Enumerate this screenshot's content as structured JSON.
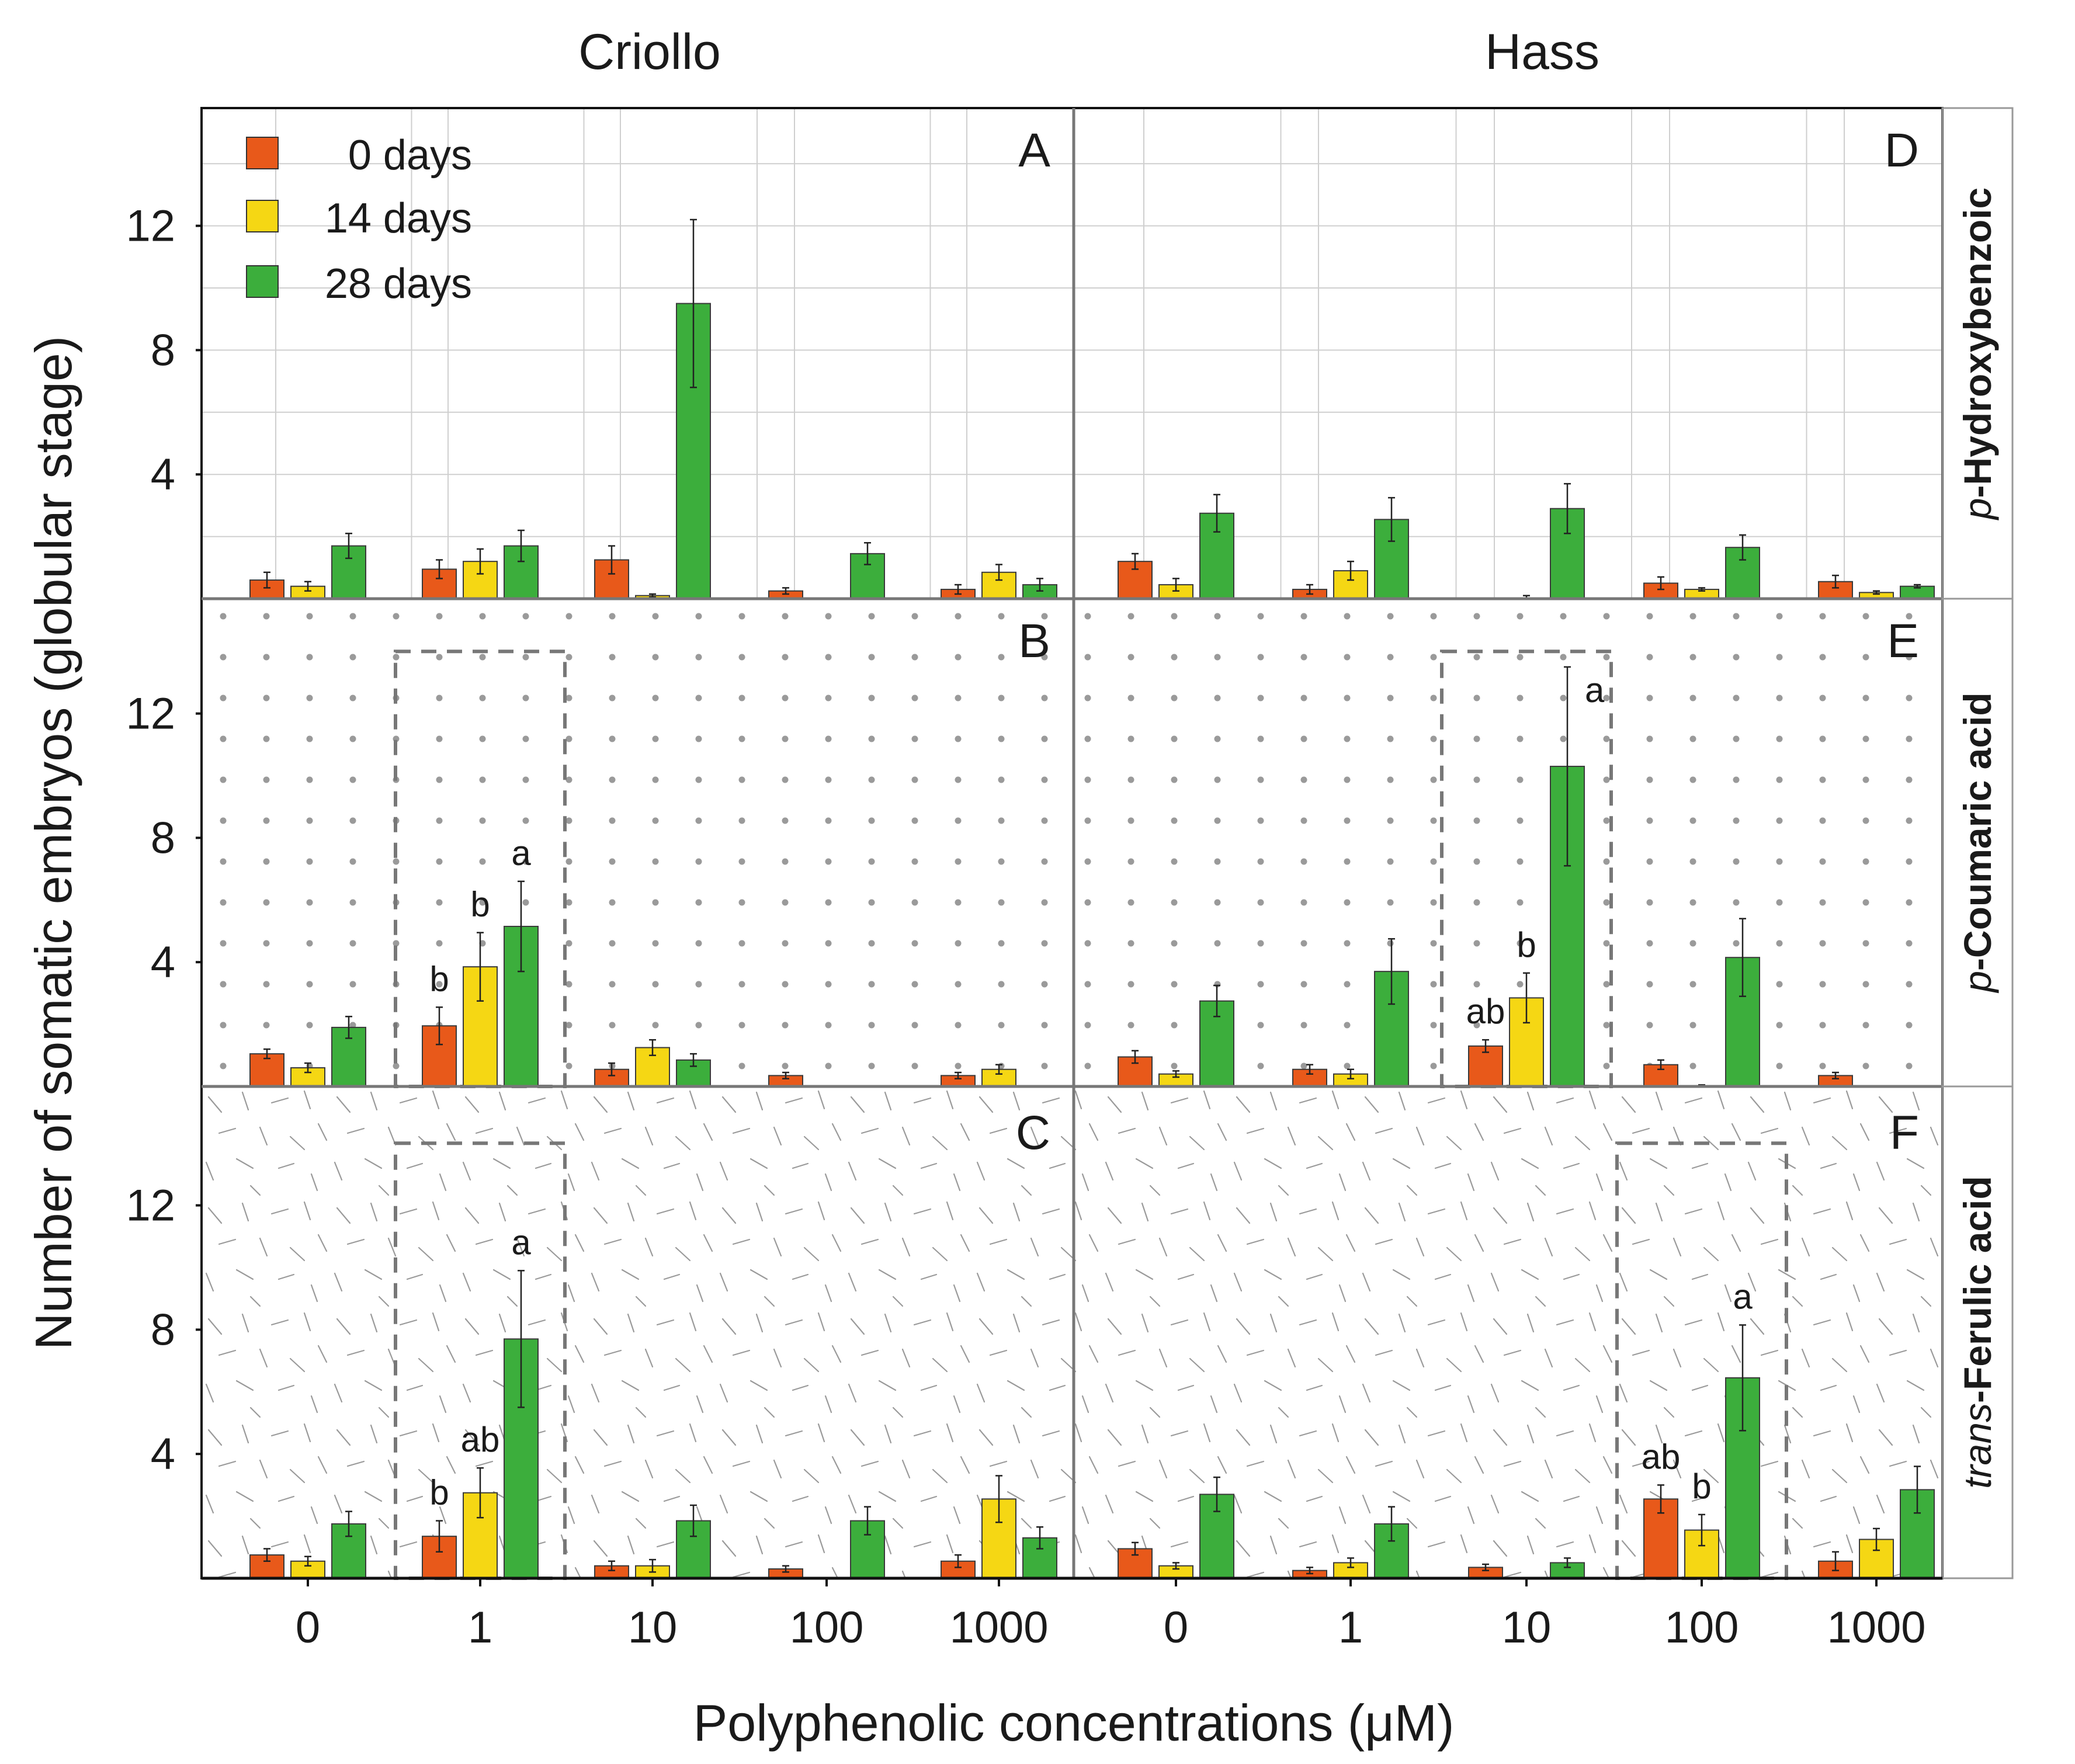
{
  "figure": {
    "x_title": "Polyphenolic concentrations (μM)",
    "y_title": "Number of somatic embryos (globular stage)"
  },
  "chart_data": {
    "type": "bar",
    "columns": [
      "Criollo",
      "Hass"
    ],
    "rows": [
      {
        "prefix": "p",
        "sep": "-",
        "name": "Hydroxybenzoic"
      },
      {
        "prefix": "p",
        "sep": "-",
        "name": "Coumaric acid"
      },
      {
        "prefix": "trans",
        "sep": "-",
        "name": "Ferulic acid"
      }
    ],
    "categories": [
      "0",
      "1",
      "10",
      "100",
      "1000"
    ],
    "series_names": [
      "0 days",
      "14 days",
      "28 days"
    ],
    "colors": [
      "#e8591a",
      "#f5d714",
      "#3cae3c"
    ],
    "ylim": [
      0,
      16
    ],
    "y_ticks": [
      4,
      8,
      12
    ],
    "panels": [
      {
        "letter": "A",
        "row": 0,
        "col": 0,
        "values": [
          [
            0.6,
            0.95,
            1.25,
            0.25,
            0.3
          ],
          [
            0.4,
            1.2,
            0.1,
            0.0,
            0.85
          ],
          [
            1.7,
            1.7,
            9.5,
            1.45,
            0.45
          ]
        ],
        "errors": [
          [
            0.25,
            0.3,
            0.45,
            0.1,
            0.15
          ],
          [
            0.15,
            0.4,
            0.05,
            0.0,
            0.25
          ],
          [
            0.4,
            0.5,
            2.7,
            0.35,
            0.2
          ]
        ],
        "letters": [
          [
            "",
            "",
            "",
            "",
            ""
          ],
          [
            "",
            "",
            "",
            "",
            ""
          ],
          [
            "",
            "",
            "",
            "",
            ""
          ]
        ],
        "highlight": null
      },
      {
        "letter": "B",
        "row": 1,
        "col": 0,
        "values": [
          [
            1.05,
            1.95,
            0.55,
            0.35,
            0.35
          ],
          [
            0.6,
            3.85,
            1.25,
            0.0,
            0.55
          ],
          [
            1.9,
            5.15,
            0.85,
            0.0,
            0.0
          ]
        ],
        "errors": [
          [
            0.15,
            0.6,
            0.2,
            0.1,
            0.1
          ],
          [
            0.15,
            1.1,
            0.25,
            0.0,
            0.15
          ],
          [
            0.35,
            1.45,
            0.2,
            0.0,
            0.0
          ]
        ],
        "letters": [
          [
            "",
            "b",
            "",
            "",
            ""
          ],
          [
            "",
            "b",
            "",
            "",
            ""
          ],
          [
            "",
            "a",
            "",
            "",
            ""
          ]
        ],
        "highlight": 1
      },
      {
        "letter": "C",
        "row": 2,
        "col": 0,
        "values": [
          [
            0.75,
            1.35,
            0.4,
            0.3,
            0.55
          ],
          [
            0.55,
            2.75,
            0.4,
            0.0,
            2.55
          ],
          [
            1.75,
            7.7,
            1.85,
            1.85,
            1.3
          ]
        ],
        "errors": [
          [
            0.2,
            0.5,
            0.15,
            0.1,
            0.2
          ],
          [
            0.15,
            0.8,
            0.2,
            0.0,
            0.75
          ],
          [
            0.4,
            2.2,
            0.5,
            0.45,
            0.35
          ]
        ],
        "letters": [
          [
            "",
            "b",
            "",
            "",
            ""
          ],
          [
            "",
            "ab",
            "",
            "",
            ""
          ],
          [
            "",
            "a",
            "",
            "",
            ""
          ]
        ],
        "highlight": 1
      },
      {
        "letter": "D",
        "row": 0,
        "col": 1,
        "values": [
          [
            1.2,
            0.3,
            0.0,
            0.5,
            0.55
          ],
          [
            0.45,
            0.9,
            0.0,
            0.3,
            0.2
          ],
          [
            2.75,
            2.55,
            2.9,
            1.65,
            0.4
          ]
        ],
        "errors": [
          [
            0.25,
            0.15,
            0.0,
            0.2,
            0.2
          ],
          [
            0.2,
            0.3,
            0.1,
            0.05,
            0.05
          ],
          [
            0.6,
            0.7,
            0.8,
            0.4,
            0.05
          ]
        ],
        "letters": [
          [
            "",
            "",
            "",
            "",
            ""
          ],
          [
            "",
            "",
            "",
            "",
            ""
          ],
          [
            "",
            "",
            "",
            "",
            ""
          ]
        ],
        "highlight": null
      },
      {
        "letter": "E",
        "row": 1,
        "col": 1,
        "values": [
          [
            0.95,
            0.55,
            1.3,
            0.7,
            0.35
          ],
          [
            0.4,
            0.4,
            2.85,
            0.0,
            0.0
          ],
          [
            2.75,
            3.7,
            10.3,
            4.15,
            0.0
          ]
        ],
        "errors": [
          [
            0.2,
            0.15,
            0.2,
            0.15,
            0.1
          ],
          [
            0.1,
            0.15,
            0.8,
            0.05,
            0.0
          ],
          [
            0.5,
            1.05,
            3.2,
            1.25,
            0.0
          ]
        ],
        "letters": [
          [
            "",
            "",
            "ab",
            "",
            ""
          ],
          [
            "",
            "",
            "b",
            "",
            ""
          ],
          [
            "",
            "",
            "a",
            "",
            ""
          ]
        ],
        "highlight": 2
      },
      {
        "letter": "F",
        "row": 2,
        "col": 1,
        "values": [
          [
            0.95,
            0.25,
            0.35,
            2.55,
            0.55
          ],
          [
            0.4,
            0.5,
            0.0,
            1.55,
            1.25
          ],
          [
            2.7,
            1.75,
            0.5,
            6.45,
            2.85
          ]
        ],
        "errors": [
          [
            0.2,
            0.1,
            0.1,
            0.45,
            0.3
          ],
          [
            0.1,
            0.15,
            0.0,
            0.5,
            0.35
          ],
          [
            0.55,
            0.55,
            0.15,
            1.7,
            0.75
          ]
        ],
        "letters": [
          [
            "",
            "",
            "",
            "ab",
            ""
          ],
          [
            "",
            "",
            "",
            "b",
            ""
          ],
          [
            "",
            "",
            "",
            "a",
            ""
          ]
        ],
        "highlight": 3
      }
    ]
  }
}
